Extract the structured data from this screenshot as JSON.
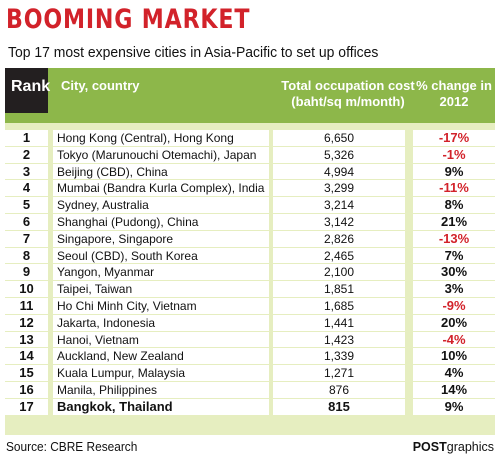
{
  "header": {
    "title": "BOOMING MARKET",
    "subtitle": "Top 17 most expensive cities in Asia-Pacific to set up offices"
  },
  "columns": {
    "rank": "Rank",
    "city": "City, country",
    "cost": "Total occupation cost (baht/sq m/month)",
    "change": "% change in 2012"
  },
  "footer": {
    "source": "Source: CBRE Research",
    "credit_bold": "POST",
    "credit_rest": "graphics"
  },
  "colors": {
    "title": "#d2222a",
    "header_bg": "#8db74a",
    "rank_header_bg": "#231f20",
    "negative": "#d2222a",
    "band": "#e6eec0"
  },
  "chart_data": {
    "type": "table",
    "title": "BOOMING MARKET",
    "subtitle": "Top 17 most expensive cities in Asia-Pacific to set up offices",
    "rows": [
      {
        "rank": "1",
        "city": "Hong Kong (Central), Hong Kong",
        "cost": "6,650",
        "change": "-17%",
        "negative": true
      },
      {
        "rank": "2",
        "city": "Tokyo (Marunouchi Otemachi), Japan",
        "cost": "5,326",
        "change": "-1%",
        "negative": true
      },
      {
        "rank": "3",
        "city": "Beijing (CBD), China",
        "cost": "4,994",
        "change": "9%",
        "negative": false
      },
      {
        "rank": "4",
        "city": "Mumbai (Bandra Kurla Complex), India",
        "cost": "3,299",
        "change": "-11%",
        "negative": true
      },
      {
        "rank": "5",
        "city": "Sydney, Australia",
        "cost": "3,214",
        "change": "8%",
        "negative": false
      },
      {
        "rank": "6",
        "city": "Shanghai (Pudong), China",
        "cost": "3,142",
        "change": "21%",
        "negative": false
      },
      {
        "rank": "7",
        "city": "Singapore, Singapore",
        "cost": "2,826",
        "change": "-13%",
        "negative": true
      },
      {
        "rank": "8",
        "city": "Seoul (CBD), South Korea",
        "cost": "2,465",
        "change": "7%",
        "negative": false
      },
      {
        "rank": "9",
        "city": "Yangon, Myanmar",
        "cost": "2,100",
        "change": "30%",
        "negative": false
      },
      {
        "rank": "10",
        "city": "Taipei, Taiwan",
        "cost": "1,851",
        "change": "3%",
        "negative": false
      },
      {
        "rank": "11",
        "city": "Ho Chi Minh City, Vietnam",
        "cost": "1,685",
        "change": "-9%",
        "negative": true
      },
      {
        "rank": "12",
        "city": "Jakarta, Indonesia",
        "cost": "1,441",
        "change": "20%",
        "negative": false
      },
      {
        "rank": "13",
        "city": "Hanoi, Vietnam",
        "cost": "1,423",
        "change": "-4%",
        "negative": true
      },
      {
        "rank": "14",
        "city": "Auckland, New Zealand",
        "cost": "1,339",
        "change": "10%",
        "negative": false
      },
      {
        "rank": "15",
        "city": "Kuala Lumpur, Malaysia",
        "cost": "1,271",
        "change": "4%",
        "negative": false
      },
      {
        "rank": "16",
        "city": "Manila, Philippines",
        "cost": "876",
        "change": "14%",
        "negative": false
      },
      {
        "rank": "17",
        "city": "Bangkok, Thailand",
        "cost": "815",
        "change": "9%",
        "negative": false,
        "highlight": true
      }
    ]
  }
}
